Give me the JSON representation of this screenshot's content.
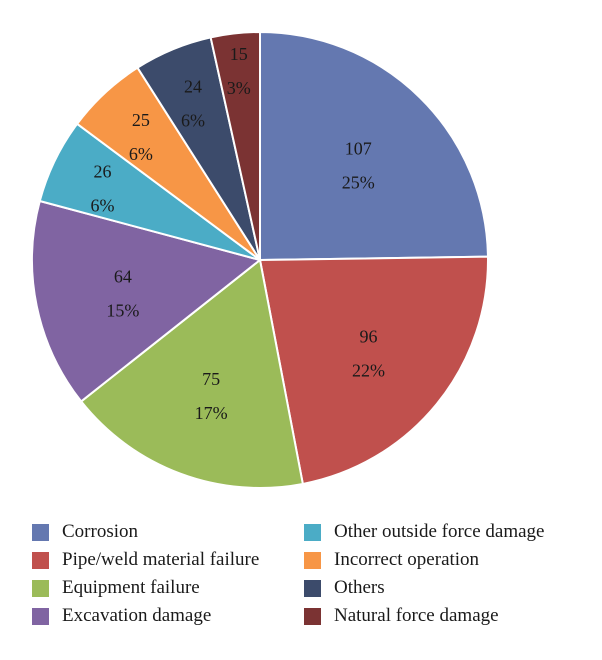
{
  "chart_data": {
    "type": "pie",
    "title": "",
    "slices": [
      {
        "label": "Corrosion",
        "value": 107,
        "percent": "25%",
        "color": "#6478B0"
      },
      {
        "label": "Pipe/weld material failure",
        "value": 96,
        "percent": "22%",
        "color": "#C0504D"
      },
      {
        "label": "Equipment failure",
        "value": 75,
        "percent": "17%",
        "color": "#9BBB59"
      },
      {
        "label": "Excavation damage",
        "value": 64,
        "percent": "15%",
        "color": "#8064A2"
      },
      {
        "label": "Other outside force damage",
        "value": 26,
        "percent": "6%",
        "color": "#4BACC6"
      },
      {
        "label": "Incorrect operation",
        "value": 25,
        "percent": "6%",
        "color": "#F79646"
      },
      {
        "label": "Others",
        "value": 24,
        "percent": "6%",
        "color": "#3C4B6B"
      },
      {
        "label": "Natural force damage",
        "value": 15,
        "percent": "3%",
        "color": "#7B3333"
      }
    ],
    "start_angle_deg": 0,
    "direction": "clockwise",
    "legend_position": "bottom"
  }
}
